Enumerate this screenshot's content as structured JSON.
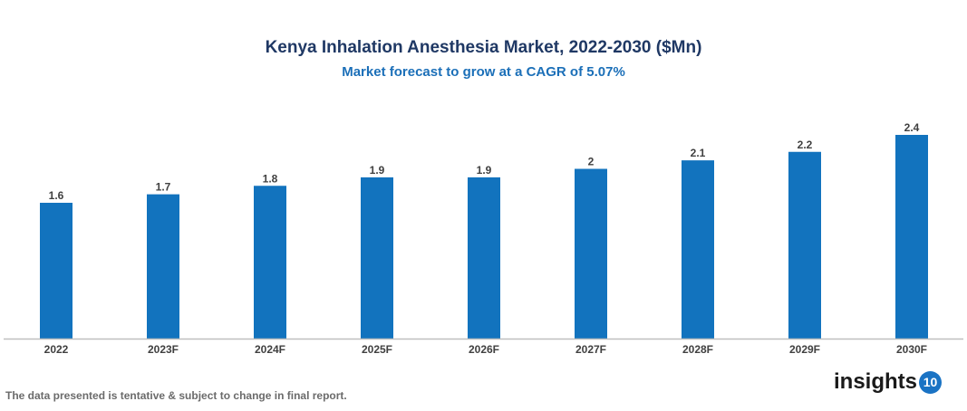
{
  "chart_data": {
    "type": "bar",
    "title": "Kenya Inhalation Anesthesia Market, 2022-2030 ($Mn)",
    "subtitle": "Market forecast to grow at a CAGR of 5.07%",
    "categories": [
      "2022",
      "2023F",
      "2024F",
      "2025F",
      "2026F",
      "2027F",
      "2028F",
      "2029F",
      "2030F"
    ],
    "values": [
      1.6,
      1.7,
      1.8,
      1.9,
      1.9,
      2,
      2.1,
      2.2,
      2.4
    ],
    "labels": [
      "1.6",
      "1.7",
      "1.8",
      "1.9",
      "1.9",
      "2",
      "2.1",
      "2.2",
      "2.4"
    ],
    "xlabel": "",
    "ylabel": "",
    "ylim": [
      0,
      2.4
    ],
    "grid": false,
    "bar_color": "#1273be"
  },
  "footnote": "The data presented is tentative & subject to change in final report.",
  "logo": {
    "text": "insights",
    "badge": "10"
  }
}
